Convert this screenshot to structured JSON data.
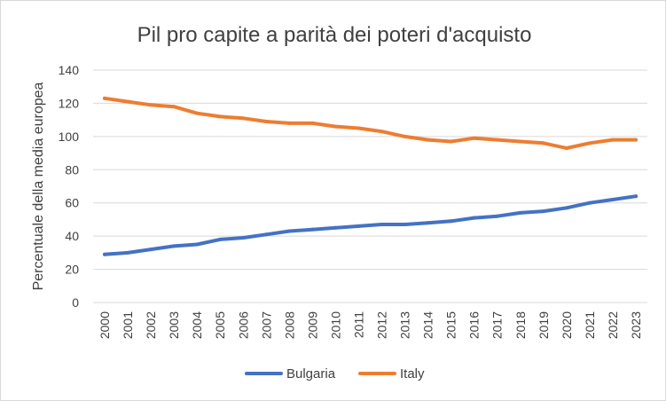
{
  "chart_data": {
    "type": "line",
    "title": "Pil pro capite a parità dei poteri d'acquisto",
    "xlabel": "",
    "ylabel": "Percentuale della media europea",
    "ylim": [
      0,
      140
    ],
    "yticks": [
      "0",
      "20",
      "40",
      "60",
      "80",
      "100",
      "120",
      "140"
    ],
    "grid": true,
    "legend_position": "bottom",
    "categories": [
      "2000",
      "2001",
      "2002",
      "2003",
      "2004",
      "2005",
      "2006",
      "2007",
      "2008",
      "2009",
      "2010",
      "2011",
      "2012",
      "2013",
      "2014",
      "2015",
      "2016",
      "2017",
      "2018",
      "2019",
      "2020",
      "2021",
      "2022",
      "2023"
    ],
    "series": [
      {
        "name": "Bulgaria",
        "color": "#4472c4",
        "values": [
          29,
          30,
          32,
          34,
          35,
          38,
          39,
          41,
          43,
          44,
          45,
          46,
          47,
          47,
          48,
          49,
          51,
          52,
          54,
          55,
          57,
          60,
          62,
          64
        ]
      },
      {
        "name": "Italy",
        "color": "#ed7d31",
        "values": [
          123,
          121,
          119,
          118,
          114,
          112,
          111,
          109,
          108,
          108,
          106,
          105,
          103,
          100,
          98,
          97,
          99,
          98,
          97,
          96,
          93,
          96,
          98,
          98
        ]
      }
    ]
  }
}
